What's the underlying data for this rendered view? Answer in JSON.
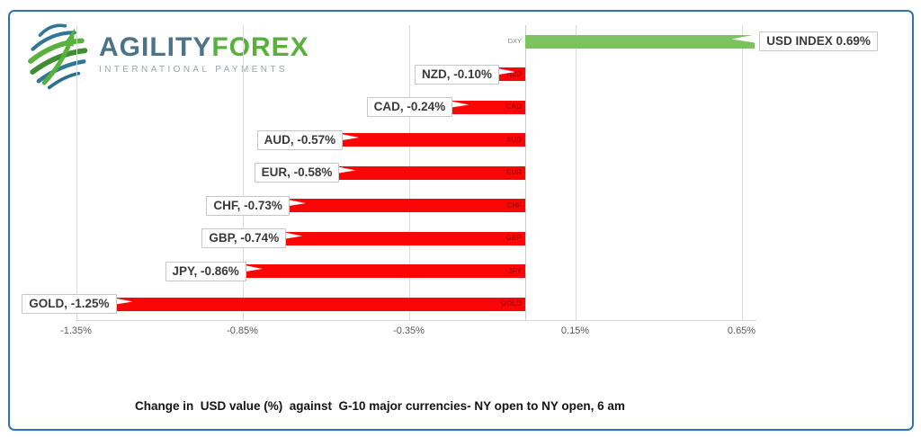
{
  "brand": {
    "name_primary": "AGILITY",
    "name_secondary": "FOREX",
    "tagline": "INTERNATIONAL PAYMENTS",
    "logo_icon": "globe-swoosh-arrow-icon",
    "primary_color": "#4c7489",
    "secondary_color": "#58b13c"
  },
  "frame": {
    "border_color": "#2e74b5"
  },
  "chart_data": {
    "type": "bar",
    "orientation": "horizontal",
    "title": "Change in  USD value (%)  against  G-10 major currencies- NY open to NY open, 6 am",
    "categories": [
      "DXY",
      "NZD",
      "CAD",
      "AUD",
      "EUR",
      "CHF",
      "GBP",
      "JPY",
      "GOLD"
    ],
    "values": [
      0.69,
      -0.1,
      -0.24,
      -0.57,
      -0.58,
      -0.73,
      -0.74,
      -0.86,
      -1.25
    ],
    "bar_labels": [
      "USD INDEX 0.69%",
      "NZD, -0.10%",
      "CAD, -0.24%",
      "AUD, -0.57%",
      "EUR, -0.58%",
      "CHF, -0.73%",
      "GBP, -0.74%",
      "JPY, -0.86%",
      "GOLD, -1.25%"
    ],
    "x_tick_labels": [
      "-1.35%",
      "-0.85%",
      "-0.35%",
      "0.15%",
      "0.65%"
    ],
    "x_tick_values": [
      -1.35,
      -0.85,
      -0.35,
      0.15,
      0.65
    ],
    "xlim": [
      -1.55,
      0.95
    ],
    "grid": true,
    "legend": "none",
    "units": "percent",
    "positive_color": "#7cc261",
    "negative_color": "#fb0606",
    "axis_label_color": "#5a5a5a"
  }
}
